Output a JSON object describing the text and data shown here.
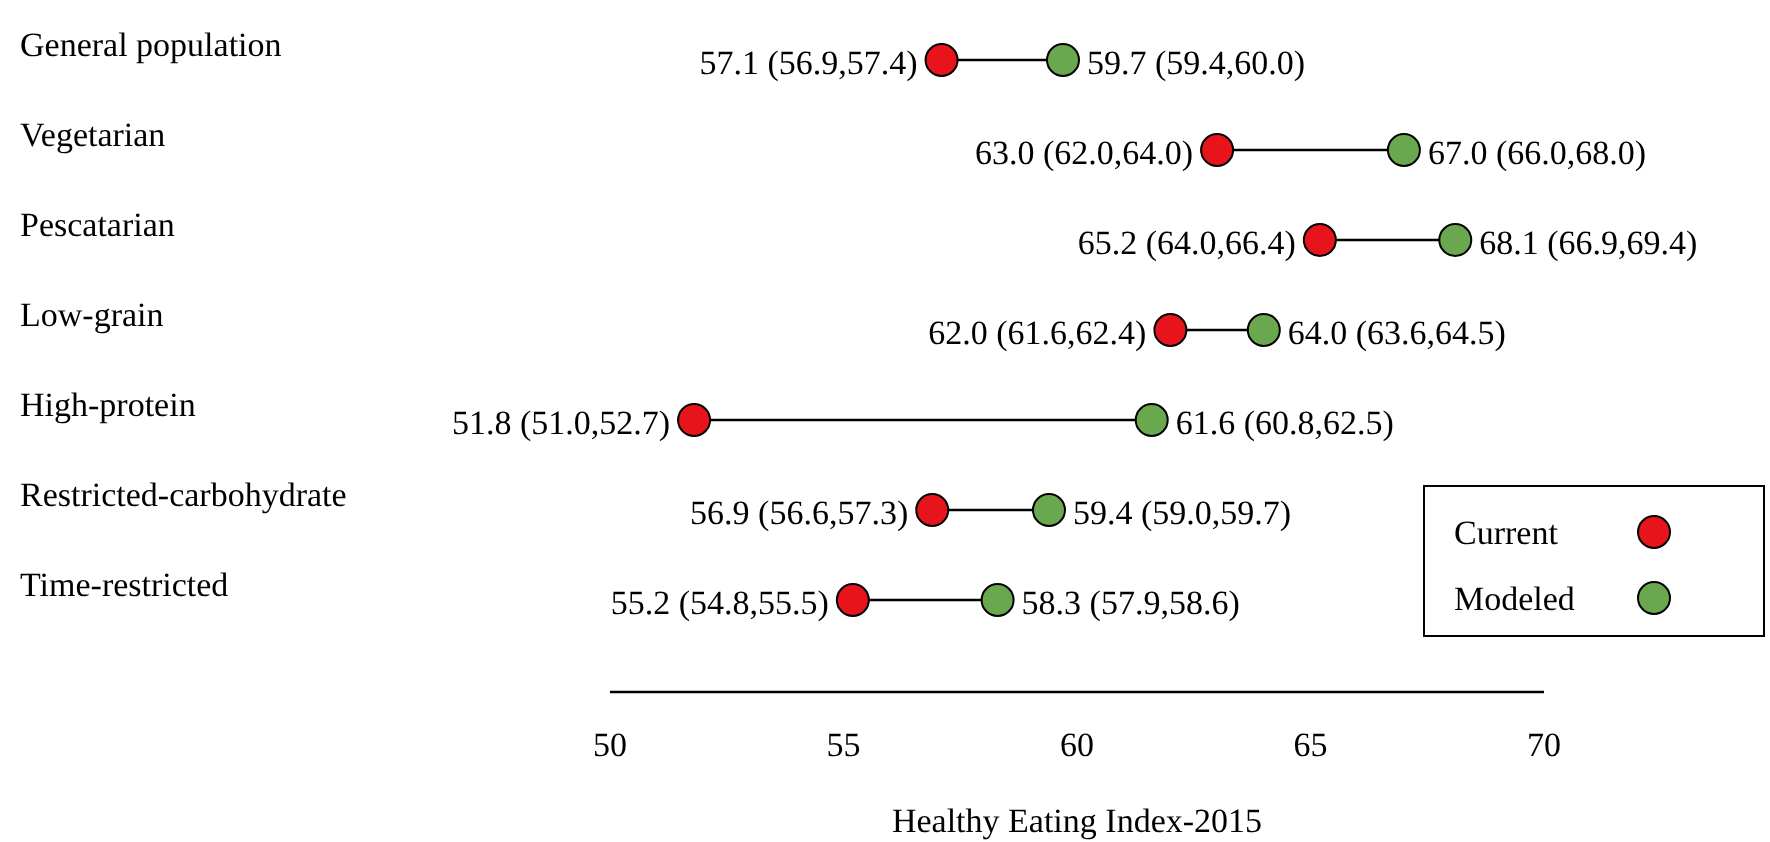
{
  "chart_data": {
    "type": "scatter",
    "orientation": "horizontal",
    "xlabel": "Healthy Eating Index-2015",
    "categories": [
      "General population",
      "Vegetarian",
      "Pescatarian",
      "Low-grain",
      "High-protein",
      "Restricted-carbohydrate",
      "Time-restricted"
    ],
    "series": [
      {
        "name": "Current",
        "color": "#e8141b",
        "values": [
          57.1,
          63.0,
          65.2,
          62.0,
          51.8,
          56.9,
          55.2
        ],
        "value_labels": [
          "57.1 (56.9,57.4)",
          "63.0 (62.0,64.0)",
          "65.2 (64.0,66.4)",
          "62.0 (61.6,62.4)",
          "51.8 (51.0,52.7)",
          "56.9 (56.6,57.3)",
          "55.2 (54.8,55.5)"
        ]
      },
      {
        "name": "Modeled",
        "color": "#6aa84f",
        "values": [
          59.7,
          67.0,
          68.1,
          64.0,
          61.6,
          59.4,
          58.3
        ],
        "value_labels": [
          "59.7 (59.4,60.0)",
          "67.0 (66.0,68.0)",
          "68.1 (66.9,69.4)",
          "64.0 (63.6,64.5)",
          "61.6 (60.8,62.5)",
          "59.4 (59.0,59.7)",
          "58.3 (57.9,58.6)"
        ]
      }
    ],
    "xlim": [
      50,
      70
    ],
    "xticks": [
      50,
      55,
      60,
      65,
      70
    ],
    "marker": "circle",
    "legend": "bottom right",
    "grid": false
  }
}
